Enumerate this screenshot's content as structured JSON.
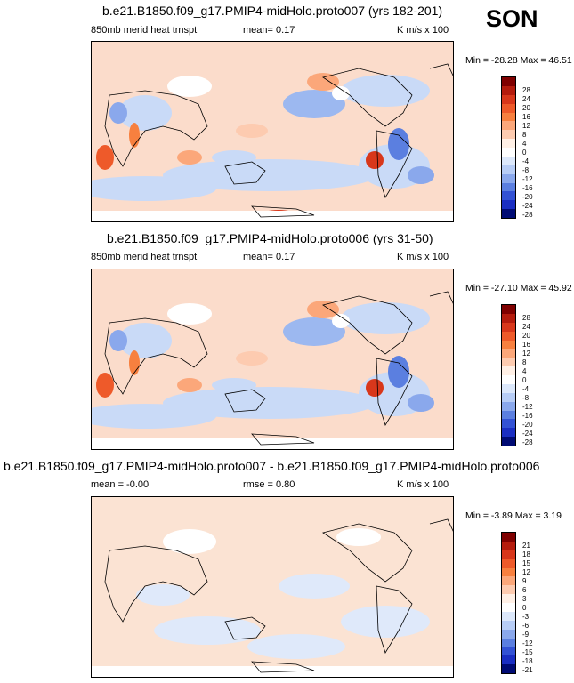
{
  "season": "SON",
  "panels": [
    {
      "title": "b.e21.B1850.f09_g17.PMIP4-midHolo.proto007 (yrs 182-201)",
      "variable": "850mb merid heat trnspt",
      "mean_text": "mean=   0.17",
      "units": "K m/s x 100",
      "minmax": "Min = -28.28 Max =  46.51",
      "colorbar_labels": [
        "28",
        "24",
        "20",
        "16",
        "12",
        "8",
        "4",
        "0",
        "-4",
        "-8",
        "-12",
        "-16",
        "-20",
        "-24",
        "-28"
      ]
    },
    {
      "title": "b.e21.B1850.f09_g17.PMIP4-midHolo.proto006 (yrs 31-50)",
      "variable": "850mb merid heat trnspt",
      "mean_text": "mean=   0.17",
      "units": "K m/s x 100",
      "minmax": "Min = -27.10 Max =  45.92",
      "colorbar_labels": [
        "28",
        "24",
        "20",
        "16",
        "12",
        "8",
        "4",
        "0",
        "-4",
        "-8",
        "-12",
        "-16",
        "-20",
        "-24",
        "-28"
      ]
    },
    {
      "title": "b.e21.B1850.f09_g17.PMIP4-midHolo.proto007 - b.e21.B1850.f09_g17.PMIP4-midHolo.proto006",
      "mean_text": "mean =  -0.00",
      "rmse_text": "rmse =   0.80",
      "units": "K m/s x 100",
      "minmax": "Min =  -3.89 Max =   3.19",
      "colorbar_labels": [
        "21",
        "18",
        "15",
        "12",
        "9",
        "6",
        "3",
        "0",
        "-3",
        "-6",
        "-9",
        "-12",
        "-15",
        "-18",
        "-21"
      ]
    }
  ],
  "colors": {
    "scale": [
      "#7f0000",
      "#b41b0d",
      "#d8371b",
      "#ee5a2a",
      "#f7803f",
      "#fba77a",
      "#fdcbb0",
      "#fff0e6",
      "#ffffff",
      "#dce8fb",
      "#b7cdf6",
      "#8aa8ec",
      "#5b7fe0",
      "#3352d4",
      "#1a2ec2",
      "#0a169e",
      "#000b74"
    ],
    "map_base": "#fbdccb",
    "land_line": "#000000"
  }
}
